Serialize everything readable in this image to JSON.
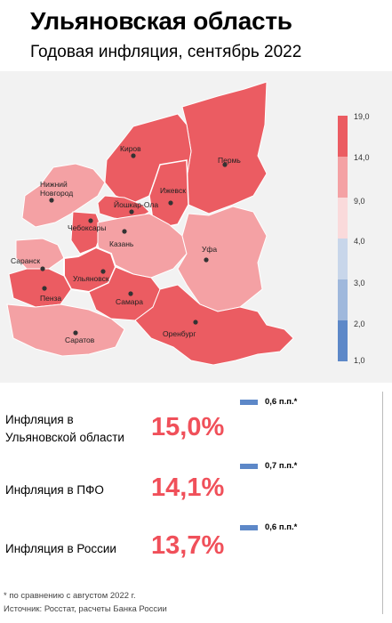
{
  "header": {
    "title": "Ульяновская область",
    "subtitle": "Годовая инфляция, сентябрь 2022"
  },
  "map": {
    "cities": [
      {
        "name": "Киров",
        "value_band": "14,0–19,0"
      },
      {
        "name": "Пермь",
        "value_band": "14,0–19,0"
      },
      {
        "name": "Нижний Новгород",
        "value_band": "9,0–14,0"
      },
      {
        "name": "Ижевск",
        "value_band": "14,0–19,0"
      },
      {
        "name": "Йошкар-Ола",
        "value_band": "14,0–19,0"
      },
      {
        "name": "Чебоксары",
        "value_band": "14,0–19,0"
      },
      {
        "name": "Казань",
        "value_band": "9,0–14,0"
      },
      {
        "name": "Уфа",
        "value_band": "9,0–14,0"
      },
      {
        "name": "Саранск",
        "value_band": "9,0–14,0"
      },
      {
        "name": "Ульяновск",
        "value_band": "14,0–19,0"
      },
      {
        "name": "Пенза",
        "value_band": "14,0–19,0"
      },
      {
        "name": "Самара",
        "value_band": "14,0–19,0"
      },
      {
        "name": "Оренбург",
        "value_band": "14,0–19,0"
      },
      {
        "name": "Саратов",
        "value_band": "9,0–14,0"
      }
    ],
    "colors": {
      "band_14_19": "#eb5c62",
      "band_9_14": "#f4a1a4",
      "band_4_9": "#fadadb",
      "band_3_4": "#c8d6ea",
      "band_2_3": "#9fb8dc",
      "band_1_2": "#5d88c8",
      "background": "#f2f2f2"
    }
  },
  "legend": {
    "ticks": [
      "19,0",
      "14,0",
      "9,0",
      "4,0",
      "3,0",
      "2,0",
      "1,0"
    ]
  },
  "stats": [
    {
      "label_line1": "Инфляция в",
      "label_line2": "Ульяновской области",
      "value": "15,0%",
      "delta": "0,6 п.п.*",
      "delta_pp": 0.6
    },
    {
      "label_line1": "Инфляция в ПФО",
      "label_line2": "",
      "value": "14,1%",
      "delta": "0,7 п.п.*",
      "delta_pp": 0.7
    },
    {
      "label_line1": "Инфляция в России",
      "label_line2": "",
      "value": "13,7%",
      "delta": "0,6 п.п.*",
      "delta_pp": 0.6
    }
  ],
  "footer": {
    "note": "* по сравнению с августом 2022 г.",
    "source": "Источник: Росстат, расчеты Банка России"
  }
}
